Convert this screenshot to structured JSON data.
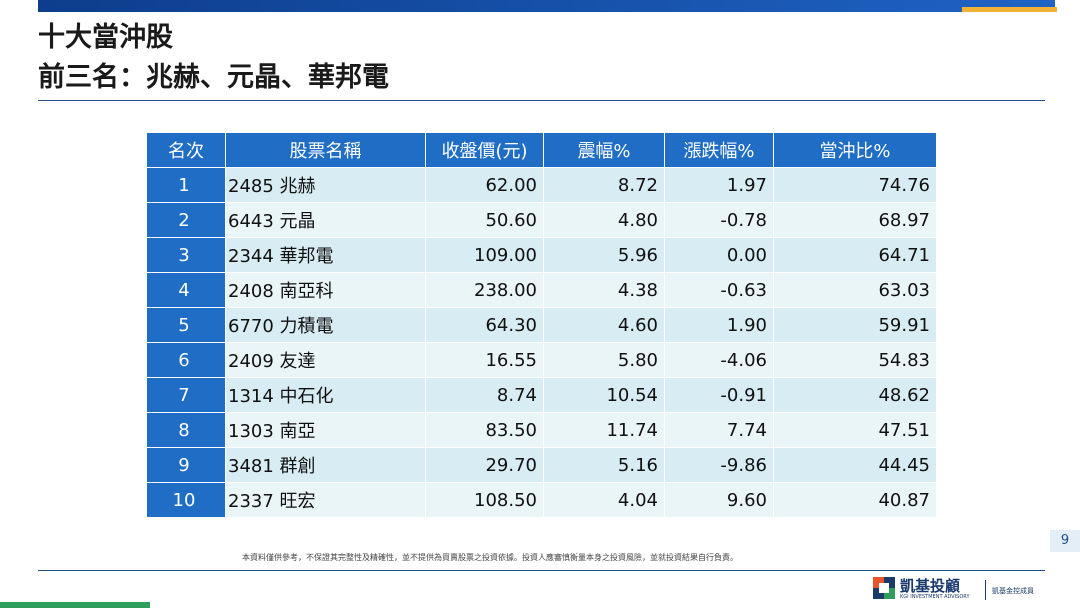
{
  "header": {
    "title": "十大當沖股",
    "subtitle": "前三名：兆赫、元晶、華邦電"
  },
  "table": {
    "headers": [
      "名次",
      "股票名稱",
      "收盤價(元)",
      "震幅%",
      "漲跌幅%",
      "當沖比%"
    ],
    "rows": [
      [
        "1",
        "2485 兆赫",
        "62.00",
        "8.72",
        "1.97",
        "74.76"
      ],
      [
        "2",
        "6443 元晶",
        "50.60",
        "4.80",
        "-0.78",
        "68.97"
      ],
      [
        "3",
        "2344 華邦電",
        "109.00",
        "5.96",
        "0.00",
        "64.71"
      ],
      [
        "4",
        "2408 南亞科",
        "238.00",
        "4.38",
        "-0.63",
        "63.03"
      ],
      [
        "5",
        "6770 力積電",
        "64.30",
        "4.60",
        "1.90",
        "59.91"
      ],
      [
        "6",
        "2409 友達",
        "16.55",
        "5.80",
        "-4.06",
        "54.83"
      ],
      [
        "7",
        "1314 中石化",
        "8.74",
        "10.54",
        "-0.91",
        "48.62"
      ],
      [
        "8",
        "1303 南亞",
        "83.50",
        "11.74",
        "7.74",
        "47.51"
      ],
      [
        "9",
        "3481 群創",
        "29.70",
        "5.16",
        "-9.86",
        "44.45"
      ],
      [
        "10",
        "2337 旺宏",
        "108.50",
        "4.04",
        "9.60",
        "40.87"
      ]
    ]
  },
  "footnote": "本資料僅供參考，不保證其完整性及精確性，並不提供為買賣股票之投資依據。投資人應審慎衡量本身之投資風險，並就投資結果自行負責。",
  "page_number": "9",
  "logo": {
    "name": "凱基投顧",
    "english": "KGI INVESTMENT ADVISORY",
    "member": "凱基金控成員"
  }
}
